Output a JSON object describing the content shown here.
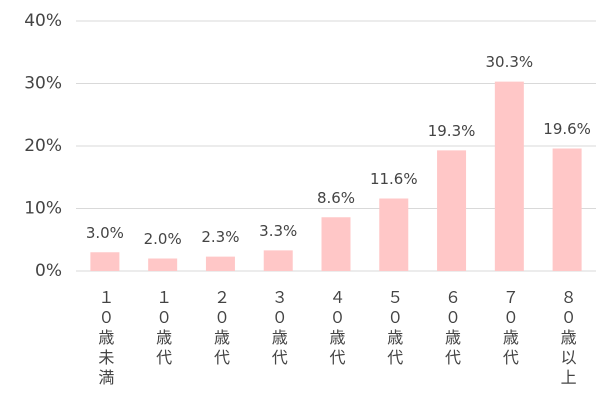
{
  "chart_data": {
    "type": "bar",
    "categories": [
      "１０歳未満",
      "１０歳代",
      "２０歳代",
      "３０歳代",
      "４０歳代",
      "５０歳代",
      "６０歳代",
      "７０歳代",
      "８０歳以上"
    ],
    "values": [
      3.0,
      2.0,
      2.3,
      3.3,
      8.6,
      11.6,
      19.3,
      30.3,
      19.6
    ],
    "value_labels": [
      "3.0%",
      "2.0%",
      "2.3%",
      "3.3%",
      "8.6%",
      "11.6%",
      "19.3%",
      "30.3%",
      "19.6%"
    ],
    "color": "#ffc7c7",
    "ylim": [
      0,
      40
    ],
    "yticks": [
      {
        "value": 0,
        "label": "0%"
      },
      {
        "value": 10,
        "label": "10%"
      },
      {
        "value": 20,
        "label": "20%"
      },
      {
        "value": 30,
        "label": "30%"
      },
      {
        "value": 40,
        "label": "40%"
      }
    ],
    "grid": true
  }
}
